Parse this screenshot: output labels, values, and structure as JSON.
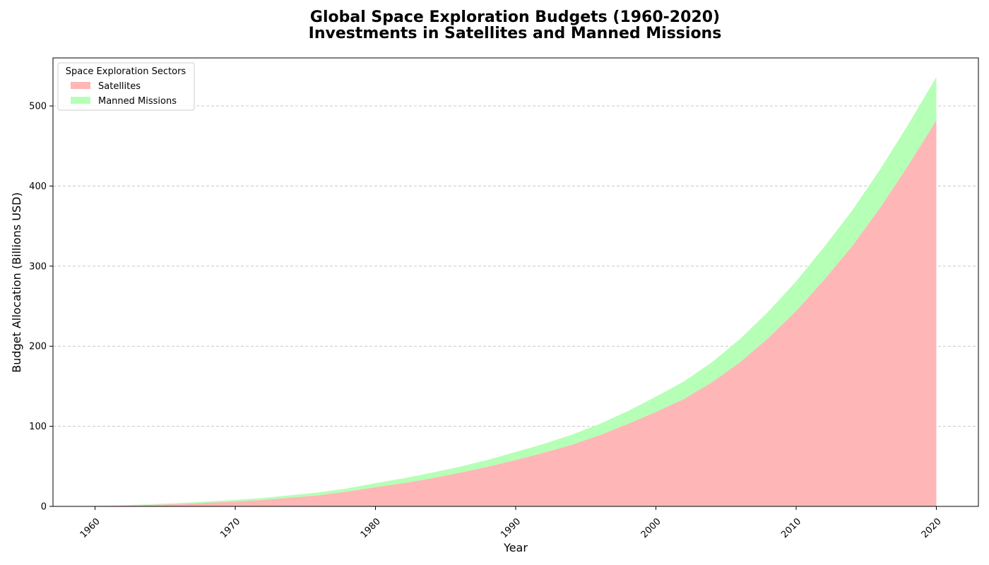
{
  "chart_data": {
    "type": "area",
    "stacked": true,
    "title": "Global Space Exploration Budgets (1960-2020)",
    "subtitle": "Investments in Satellites and Manned Missions",
    "xlabel": "Year",
    "ylabel": "Budget Allocation (Billions USD)",
    "xlim": [
      1957,
      2023
    ],
    "ylim": [
      0,
      560
    ],
    "x_ticks": [
      1960,
      1970,
      1980,
      1990,
      2000,
      2010,
      2020
    ],
    "y_ticks": [
      0,
      100,
      200,
      300,
      400,
      500
    ],
    "grid": "y-dashed",
    "legend": {
      "title": "Space Exploration Sectors",
      "placement": "top-left"
    },
    "x": [
      1960,
      1962,
      1964,
      1966,
      1968,
      1970,
      1972,
      1974,
      1976,
      1978,
      1980,
      1982,
      1984,
      1986,
      1988,
      1990,
      1992,
      1994,
      1996,
      1998,
      2000,
      2002,
      2004,
      2006,
      2008,
      2010,
      2012,
      2014,
      2016,
      2018,
      2020
    ],
    "series": [
      {
        "name": "Satellites",
        "color": "#ffb6b6",
        "values": [
          0.5,
          1,
          2,
          3,
          4.5,
          6,
          8,
          11,
          14,
          18.5,
          24,
          29,
          35,
          42,
          49.5,
          58,
          67,
          77,
          89,
          103,
          118,
          134,
          155,
          180,
          210,
          244,
          283,
          325,
          373,
          426,
          482
        ]
      },
      {
        "name": "Manned Missions",
        "color": "#b6ffb6",
        "values": [
          0,
          0.3,
          0.8,
          1.2,
          1.6,
          2,
          2.5,
          3,
          3.5,
          4,
          5,
          6,
          7,
          7.5,
          8.5,
          10,
          11,
          12.5,
          14,
          16,
          19,
          22,
          25,
          29,
          33,
          37,
          41,
          44.5,
          48,
          51,
          54
        ]
      }
    ]
  }
}
